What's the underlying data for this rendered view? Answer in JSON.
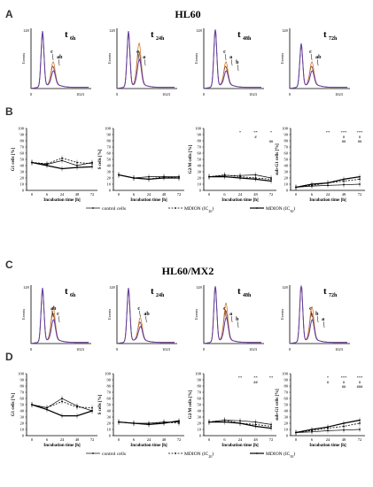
{
  "figure": {
    "sections": [
      {
        "key": "hl60",
        "title": "HL60",
        "hist_letter": "A",
        "line_letter": "B",
        "histograms": [
          {
            "time_base": "t",
            "time_sub": "6h",
            "peak_labels": [
              "c",
              "ab"
            ]
          },
          {
            "time_base": "t",
            "time_sub": "24h",
            "peak_labels": [
              "c",
              "a"
            ]
          },
          {
            "time_base": "t",
            "time_sub": "48h",
            "peak_labels": [
              "c",
              "a",
              "b"
            ]
          },
          {
            "time_base": "t",
            "time_sub": "72h",
            "peak_labels": [
              "c",
              "ab"
            ]
          }
        ],
        "line_charts": [
          {
            "ylabel": "G1 cells [%]",
            "sig_rows": []
          },
          {
            "ylabel": "S cells [%]",
            "sig_rows": []
          },
          {
            "ylabel": "G2/M cells [%]",
            "sig_rows": [
              [
                "",
                "",
                "*",
                "**",
                "*"
              ],
              [
                "",
                "",
                "",
                "#",
                ""
              ],
              [
                "",
                "",
                "",
                "",
                "##"
              ]
            ]
          },
          {
            "ylabel": "sub-G1 cells [%]",
            "sig_rows": [
              [
                "",
                "",
                "**",
                "***",
                "***"
              ],
              [
                "",
                "",
                "",
                "#",
                "#"
              ],
              [
                "",
                "",
                "",
                "##",
                "##"
              ]
            ]
          }
        ]
      },
      {
        "key": "hl60mx2",
        "title": "HL60/MX2",
        "hist_letter": "C",
        "line_letter": "D",
        "histograms": [
          {
            "time_base": "t",
            "time_sub": "6h",
            "peak_labels": [
              "ab",
              "c"
            ]
          },
          {
            "time_base": "t",
            "time_sub": "24h",
            "peak_labels": [
              "c",
              "ab"
            ]
          },
          {
            "time_base": "t",
            "time_sub": "48h",
            "peak_labels": [
              "c",
              "a",
              "b"
            ]
          },
          {
            "time_base": "t",
            "time_sub": "72h",
            "peak_labels": [
              "c",
              "b",
              "a"
            ]
          }
        ],
        "line_charts": [
          {
            "ylabel": "G1 cells [%]",
            "sig_rows": []
          },
          {
            "ylabel": "S cells [%]",
            "sig_rows": []
          },
          {
            "ylabel": "G2/M cells [%]",
            "sig_rows": [
              [
                "",
                "",
                "**",
                "**",
                "**"
              ],
              [
                "",
                "",
                "",
                "##",
                ""
              ]
            ]
          },
          {
            "ylabel": "sub-G1 cells [%]",
            "sig_rows": [
              [
                "",
                "",
                "*",
                "***",
                "***"
              ],
              [
                "",
                "",
                "#",
                "#",
                "#"
              ],
              [
                "",
                "",
                "",
                "##",
                "###"
              ]
            ]
          }
        ]
      }
    ],
    "histogram_axes": {
      "y_label": "Events",
      "y_max_label": "128",
      "x_min_label": "0",
      "x_max_label": "1023"
    },
    "line_axes": {
      "xlabel": "Incubation time [h]",
      "x_ticks": [
        "0",
        "6",
        "24",
        "48",
        "72"
      ],
      "y_ticks": [
        "0",
        "10",
        "20",
        "30",
        "40",
        "50",
        "60",
        "70",
        "80",
        "90",
        "100"
      ]
    },
    "legend": [
      {
        "label": "control cells",
        "style": "solid-thin"
      },
      {
        "label": "MDION (IC",
        "sub": "20",
        "suffix": ")",
        "style": "dashed"
      },
      {
        "label": "MDION (IC",
        "sub": "50",
        "suffix": ")",
        "style": "solid-thick"
      }
    ],
    "colors": {
      "control": "#7a2a2a",
      "ic20": "#c9792a",
      "ic50": "#5a3aa8",
      "accent": "#cc2222"
    }
  },
  "chart_data": [
    {
      "type": "line",
      "title": "",
      "ylabel": "G1 cells [%]",
      "xlabel": "Incubation time [h]",
      "x": [
        "0",
        "6",
        "24",
        "48",
        "72"
      ],
      "ylim": [
        0,
        100
      ],
      "series": [
        {
          "name": "control cells",
          "values": [
            45,
            42,
            48,
            40,
            45
          ]
        },
        {
          "name": "MDION (IC20)",
          "values": [
            45,
            43,
            52,
            45,
            43
          ]
        },
        {
          "name": "MDION (IC50)",
          "values": [
            45,
            40,
            35,
            37,
            38
          ]
        }
      ]
    },
    {
      "type": "line",
      "title": "",
      "ylabel": "S cells [%]",
      "xlabel": "Incubation time [h]",
      "x": [
        "0",
        "6",
        "24",
        "48",
        "72"
      ],
      "ylim": [
        0,
        100
      ],
      "series": [
        {
          "name": "control cells",
          "values": [
            25,
            20,
            22,
            22,
            22
          ]
        },
        {
          "name": "MDION (IC20)",
          "values": [
            25,
            20,
            18,
            22,
            20
          ]
        },
        {
          "name": "MDION (IC50)",
          "values": [
            25,
            20,
            18,
            20,
            20
          ]
        }
      ]
    },
    {
      "type": "line",
      "title": "",
      "ylabel": "G2/M cells [%]",
      "xlabel": "Incubation time [h]",
      "x": [
        "0",
        "6",
        "24",
        "48",
        "72"
      ],
      "ylim": [
        0,
        100
      ],
      "series": [
        {
          "name": "control cells",
          "values": [
            22,
            24,
            24,
            25,
            20
          ]
        },
        {
          "name": "MDION (IC20)",
          "values": [
            22,
            25,
            22,
            20,
            18
          ]
        },
        {
          "name": "MDION (IC50)",
          "values": [
            22,
            22,
            20,
            18,
            15
          ]
        }
      ]
    },
    {
      "type": "line",
      "title": "",
      "ylabel": "sub-G1 cells [%]",
      "xlabel": "Incubation time [h]",
      "x": [
        "0",
        "6",
        "24",
        "48",
        "72"
      ],
      "ylim": [
        0,
        100
      ],
      "series": [
        {
          "name": "control cells",
          "values": [
            5,
            7,
            8,
            9,
            10
          ]
        },
        {
          "name": "MDION (IC20)",
          "values": [
            5,
            8,
            12,
            15,
            18
          ]
        },
        {
          "name": "MDION (IC50)",
          "values": [
            5,
            10,
            12,
            18,
            22
          ]
        }
      ]
    },
    {
      "type": "line",
      "title": "",
      "ylabel": "G1 cells [%]",
      "xlabel": "Incubation time [h]",
      "x": [
        "0",
        "6",
        "24",
        "48",
        "72"
      ],
      "ylim": [
        0,
        100
      ],
      "series": [
        {
          "name": "control cells",
          "values": [
            50,
            45,
            60,
            48,
            40
          ]
        },
        {
          "name": "MDION (IC20)",
          "values": [
            50,
            45,
            55,
            46,
            45
          ]
        },
        {
          "name": "MDION (IC50)",
          "values": [
            50,
            42,
            32,
            32,
            40
          ]
        }
      ]
    },
    {
      "type": "line",
      "title": "",
      "ylabel": "S cells [%]",
      "xlabel": "Incubation time [h]",
      "x": [
        "0",
        "6",
        "24",
        "48",
        "72"
      ],
      "ylim": [
        0,
        100
      ],
      "series": [
        {
          "name": "control cells",
          "values": [
            22,
            20,
            20,
            22,
            22
          ]
        },
        {
          "name": "MDION (IC20)",
          "values": [
            22,
            20,
            18,
            22,
            20
          ]
        },
        {
          "name": "MDION (IC50)",
          "values": [
            22,
            20,
            18,
            20,
            24
          ]
        }
      ]
    },
    {
      "type": "line",
      "title": "",
      "ylabel": "G2/M cells [%]",
      "xlabel": "Incubation time [h]",
      "x": [
        "0",
        "6",
        "24",
        "48",
        "72"
      ],
      "ylim": [
        0,
        100
      ],
      "series": [
        {
          "name": "control cells",
          "values": [
            22,
            25,
            24,
            22,
            18
          ]
        },
        {
          "name": "MDION (IC20)",
          "values": [
            22,
            25,
            20,
            18,
            15
          ]
        },
        {
          "name": "MDION (IC50)",
          "values": [
            22,
            22,
            20,
            15,
            12
          ]
        }
      ]
    },
    {
      "type": "line",
      "title": "",
      "ylabel": "sub-G1 cells [%]",
      "xlabel": "Incubation time [h]",
      "x": [
        "0",
        "6",
        "24",
        "48",
        "72"
      ],
      "ylim": [
        0,
        100
      ],
      "series": [
        {
          "name": "control cells",
          "values": [
            5,
            6,
            8,
            9,
            10
          ]
        },
        {
          "name": "MDION (IC20)",
          "values": [
            5,
            8,
            12,
            15,
            20
          ]
        },
        {
          "name": "MDION (IC50)",
          "values": [
            5,
            10,
            14,
            20,
            25
          ]
        }
      ]
    }
  ]
}
